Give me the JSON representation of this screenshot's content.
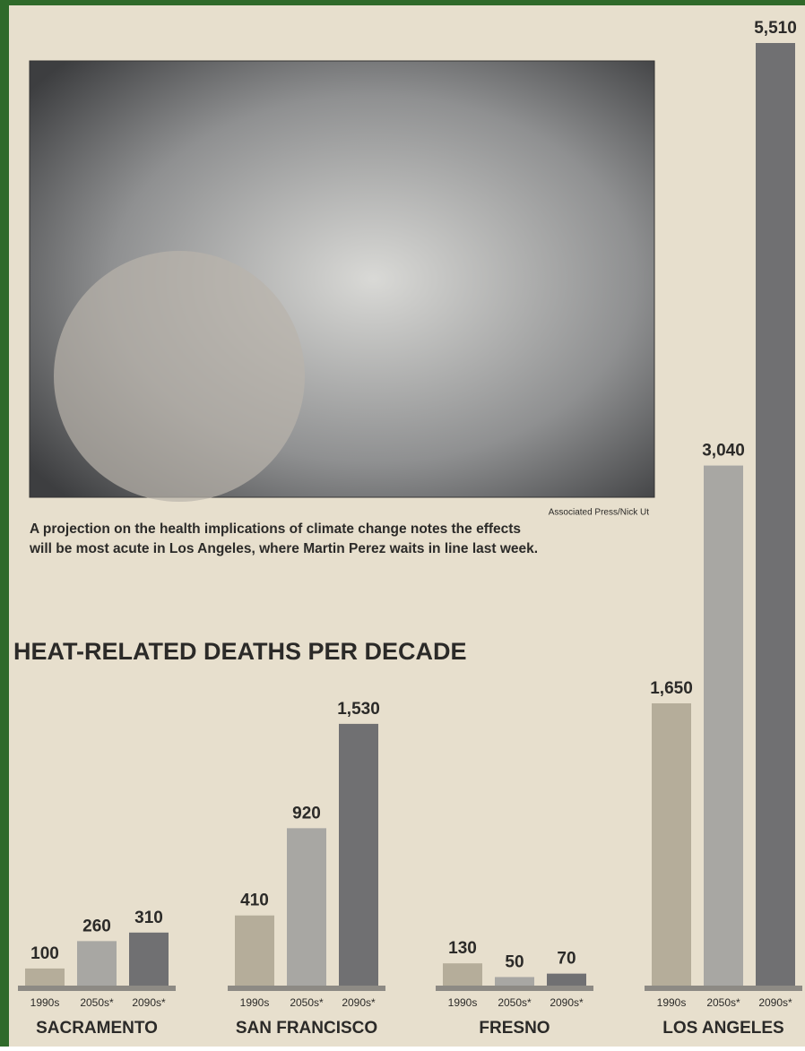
{
  "chart_data": {
    "type": "bar",
    "title": "HEAT-RELATED DEATHS PER DECADE",
    "credit": "Associated Press/Nick Ut",
    "caption": [
      "A projection on the health implications of climate change notes the effects",
      "will be most acute in Los Angeles, where Martin Perez waits in line last week."
    ],
    "categories": [
      "SACRAMENTO",
      "SAN FRANCISCO",
      "FRESNO",
      "LOS ANGELES"
    ],
    "series": [
      {
        "name": "1990s",
        "color": "#b5ad9a",
        "values": [
          100,
          410,
          130,
          1650
        ],
        "value_labels": [
          "100",
          "410",
          "130",
          "1,650"
        ]
      },
      {
        "name": "2050s*",
        "color": "#a8a7a3",
        "values": [
          260,
          920,
          50,
          3040
        ],
        "value_labels": [
          "260",
          "920",
          "50",
          "3,040"
        ]
      },
      {
        "name": "2090s*",
        "color": "#707072",
        "values": [
          310,
          1530,
          70,
          5510
        ],
        "value_labels": [
          "310",
          "1,530",
          "70",
          "5,510"
        ]
      }
    ]
  }
}
